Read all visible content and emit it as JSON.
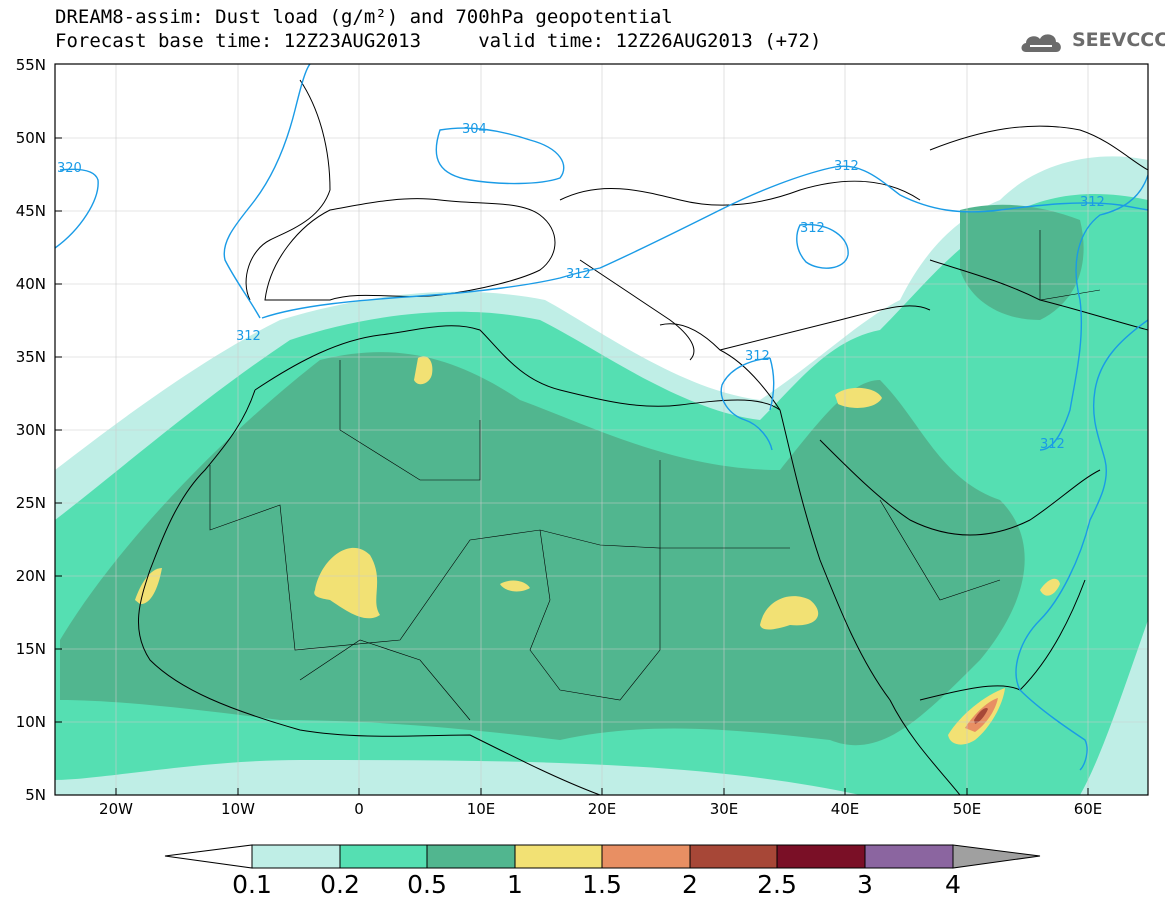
{
  "header": {
    "title_line1": "DREAM8-assim: Dust load (g/m²) and 700hPa geopotential",
    "title_line2": "Forecast base time: 12Z23AUG2013     valid time: 12Z26AUG2013 (+72)",
    "logo_text": "SEEVCCC"
  },
  "map": {
    "lat_labels": [
      "55N",
      "50N",
      "45N",
      "40N",
      "35N",
      "30N",
      "25N",
      "20N",
      "15N",
      "10N",
      "5N"
    ],
    "lon_labels": [
      "20W",
      "10W",
      "0",
      "10E",
      "20E",
      "30E",
      "40E",
      "50E",
      "60E"
    ],
    "contour_labels": [
      "320",
      "304",
      "312",
      "312",
      "312",
      "312",
      "312",
      "312",
      "312"
    ],
    "contour_color": "#1a9be6"
  },
  "colorbar": {
    "tick_labels": [
      "0.1",
      "0.2",
      "0.5",
      "1",
      "1.5",
      "2",
      "2.5",
      "3",
      "4"
    ],
    "colors": [
      "#ffffff",
      "#bfeee6",
      "#55dfb2",
      "#51b68f",
      "#f2e174",
      "#e88f63",
      "#a74737",
      "#7a0f26",
      "#8b65a0",
      "#a0a0a0"
    ]
  }
}
